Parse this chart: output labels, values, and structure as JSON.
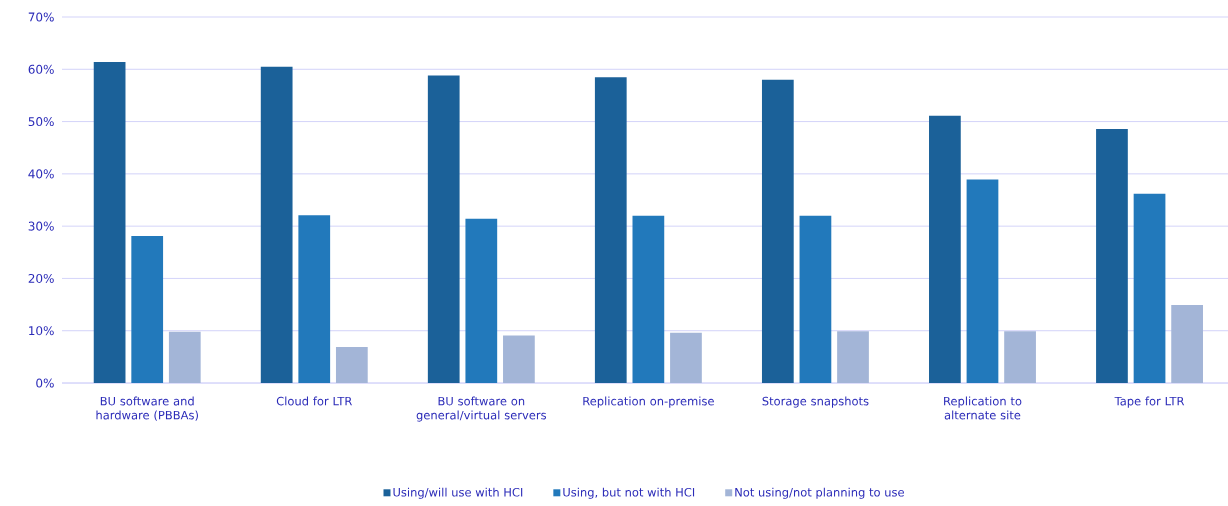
{
  "chart_data": {
    "type": "bar",
    "categories": [
      "BU software and hardware (PBBAs)",
      "Cloud for LTR",
      "BU software on general/virtual servers",
      "Replication on-premise",
      "Storage snapshots",
      "Replication to alternate site",
      "Tape for LTR"
    ],
    "series": [
      {
        "name": "Using/will use with HCI",
        "color": "#1b6199",
        "values": [
          61.4,
          60.5,
          58.8,
          58.5,
          58.0,
          51.1,
          48.6
        ]
      },
      {
        "name": "Using, but not with HCI",
        "color": "#2279bb",
        "values": [
          28.1,
          32.1,
          31.4,
          32.0,
          32.0,
          38.9,
          36.2
        ]
      },
      {
        "name": "Not using/not planning to use",
        "color": "#a3b5d7",
        "values": [
          9.8,
          6.9,
          9.1,
          9.6,
          9.9,
          9.9,
          14.9
        ]
      }
    ],
    "ylim": [
      0,
      70
    ],
    "yticks": [
      {
        "value": 0,
        "label": "0%"
      },
      {
        "value": 10,
        "label": "10%"
      },
      {
        "value": 20,
        "label": "20%"
      },
      {
        "value": 30,
        "label": "30%"
      },
      {
        "value": 40,
        "label": "40%"
      },
      {
        "value": 50,
        "label": "50%"
      },
      {
        "value": 60,
        "label": "60%"
      },
      {
        "value": 70,
        "label": "70%"
      }
    ],
    "grid": "y",
    "legend": "bottom"
  }
}
